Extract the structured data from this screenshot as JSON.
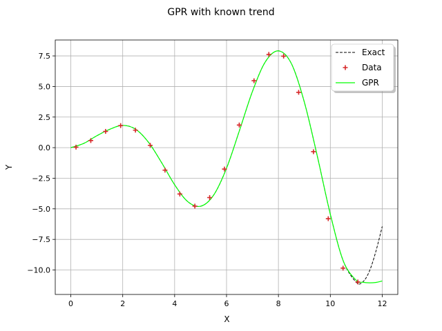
{
  "chart_data": {
    "type": "line",
    "title": "GPR with known trend",
    "xlabel": "X",
    "ylabel": "Y",
    "xlim": [
      -0.6,
      12.6
    ],
    "ylim": [
      -12.0,
      8.8
    ],
    "xticks": [
      0,
      2,
      4,
      6,
      8,
      10,
      12
    ],
    "xtick_labels": [
      "0",
      "2",
      "4",
      "6",
      "8",
      "10",
      "12"
    ],
    "yticks": [
      -10.0,
      -7.5,
      -5.0,
      -2.5,
      0.0,
      2.5,
      5.0,
      7.5
    ],
    "ytick_labels": [
      "−10.0",
      "−7.5",
      "−5.0",
      "−2.5",
      "0.0",
      "2.5",
      "5.0",
      "7.5"
    ],
    "grid": true,
    "legend_position": "top-right",
    "series": [
      {
        "name": "Exact",
        "kind": "line",
        "style": "dashed",
        "color": "#000000",
        "x": [
          0,
          0.5,
          1,
          1.5,
          2,
          2.5,
          3,
          3.5,
          4,
          4.5,
          5,
          5.5,
          6,
          6.5,
          7,
          7.5,
          8,
          8.5,
          9,
          9.5,
          10,
          10.5,
          11,
          11.25,
          11.5,
          11.75,
          12
        ],
        "y": [
          0.0,
          0.35,
          0.97,
          1.5,
          1.82,
          1.5,
          0.42,
          -1.23,
          -3.03,
          -4.4,
          -4.79,
          -3.89,
          -1.68,
          1.41,
          4.6,
          7.03,
          7.91,
          6.87,
          3.71,
          -0.71,
          -5.44,
          -9.27,
          -11.0,
          -10.98,
          -10.13,
          -8.52,
          -6.44
        ]
      },
      {
        "name": "Data",
        "kind": "scatter",
        "marker": "+",
        "color": "#d62728",
        "x": [
          0.2,
          0.77,
          1.34,
          1.92,
          2.49,
          3.06,
          3.63,
          4.2,
          4.78,
          5.35,
          5.92,
          6.49,
          7.06,
          7.63,
          8.2,
          8.78,
          9.35,
          9.92,
          10.49,
          11.06
        ],
        "y": [
          0.04,
          0.58,
          1.33,
          1.8,
          1.43,
          0.19,
          -1.84,
          -3.79,
          -4.78,
          -4.08,
          -1.75,
          1.85,
          5.47,
          7.62,
          7.48,
          4.52,
          -0.33,
          -5.81,
          -9.85,
          -10.98
        ]
      },
      {
        "name": "GPR",
        "kind": "line",
        "style": "solid",
        "color": "#00ff00",
        "x": [
          0,
          0.5,
          1,
          1.5,
          2,
          2.5,
          3,
          3.5,
          4,
          4.5,
          5,
          5.5,
          6,
          6.5,
          7,
          7.5,
          8,
          8.5,
          9,
          9.5,
          10,
          10.5,
          11,
          11.25,
          11.5,
          11.75,
          12
        ],
        "y": [
          0.0,
          0.35,
          0.97,
          1.5,
          1.82,
          1.5,
          0.42,
          -1.23,
          -3.03,
          -4.4,
          -4.79,
          -3.89,
          -1.68,
          1.41,
          4.6,
          7.03,
          7.91,
          6.87,
          3.71,
          -0.71,
          -5.44,
          -9.27,
          -10.85,
          -11.0,
          -11.05,
          -11.02,
          -10.9
        ]
      }
    ]
  }
}
